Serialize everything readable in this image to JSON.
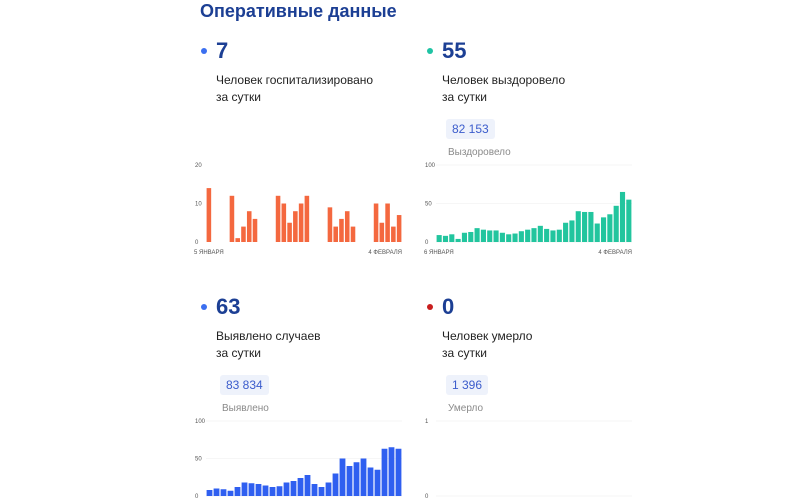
{
  "page": {
    "title": "Оперативные данные"
  },
  "stats": [
    {
      "id": "hospitalized",
      "value": "7",
      "desc_line1": "Человек госпитализировано",
      "desc_line2": "за сутки",
      "color": "#3b6ff0",
      "bar_color": "#f4683f"
    },
    {
      "id": "recovered",
      "value": "55",
      "desc_line1": "Человек выздоровело",
      "desc_line2": "за сутки",
      "total": "82 153",
      "total_label": "Выздоровело",
      "color": "#1fc3a4",
      "bar_color": "#22c59e"
    },
    {
      "id": "cases",
      "value": "63",
      "desc_line1": "Выявлено случаев",
      "desc_line2": "за сутки",
      "total": "83 834",
      "total_label": "Выявлено",
      "color": "#3b6ff0",
      "bar_color": "#2f5ff0"
    },
    {
      "id": "deaths",
      "value": "0",
      "desc_line1": "Человек умерло",
      "desc_line2": "за сутки",
      "total": "1 396",
      "total_label": "Умерло",
      "color": "#c81e1e",
      "bar_color": "#c81e1e"
    }
  ],
  "chart_data": [
    {
      "type": "bar",
      "id": "hospitalized",
      "x_start_label": "5 ЯНВАРЯ",
      "x_end_label": "4 ФЕВРАЛЯ",
      "ylim": [
        0,
        20
      ],
      "yticks": [
        "0",
        "10",
        "20"
      ],
      "grid": false,
      "values": [
        14,
        0,
        0,
        0,
        12,
        1,
        4,
        8,
        6,
        0,
        0,
        0,
        12,
        10,
        5,
        8,
        10,
        12,
        0,
        0,
        0,
        9,
        4,
        6,
        8,
        4,
        0,
        0,
        0,
        10,
        5,
        10,
        4,
        7
      ]
    },
    {
      "type": "bar",
      "id": "recovered",
      "x_start_label": "6 ЯНВАРЯ",
      "x_end_label": "4 ФЕВРАЛЯ",
      "ylim": [
        0,
        100
      ],
      "yticks": [
        "0",
        "50",
        "100"
      ],
      "grid": true,
      "values": [
        9,
        8,
        10,
        4,
        12,
        13,
        18,
        16,
        15,
        15,
        12,
        10,
        11,
        14,
        16,
        18,
        21,
        17,
        15,
        16,
        25,
        28,
        40,
        39,
        39,
        24,
        32,
        36,
        47,
        65,
        55
      ]
    },
    {
      "type": "bar",
      "id": "cases",
      "x_start_label": "",
      "x_end_label": "",
      "ylim": [
        0,
        100
      ],
      "yticks": [
        "0",
        "50",
        "100"
      ],
      "grid": true,
      "values": [
        8,
        10,
        9,
        7,
        12,
        18,
        17,
        16,
        14,
        12,
        13,
        18,
        20,
        24,
        28,
        16,
        12,
        18,
        30,
        50,
        40,
        45,
        50,
        38,
        35,
        63,
        65,
        63
      ]
    },
    {
      "type": "bar",
      "id": "deaths",
      "x_start_label": "",
      "x_end_label": "",
      "ylim": [
        0,
        1
      ],
      "yticks": [
        "0",
        "1"
      ],
      "grid": true,
      "values": []
    }
  ]
}
